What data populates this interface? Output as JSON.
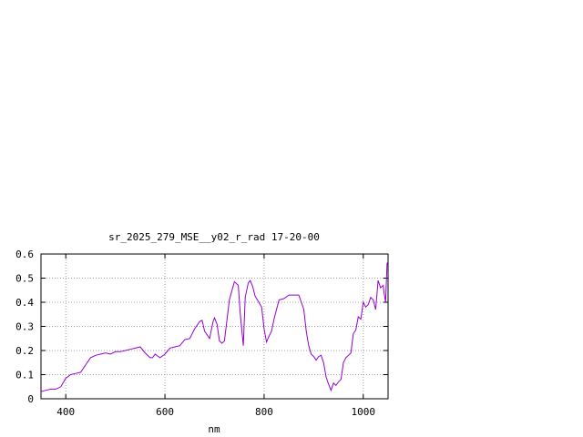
{
  "chart_data": {
    "type": "line",
    "title": "sr_2025_279_MSE__y02_r_rad 17-20-00",
    "xlabel": "nm",
    "ylabel": "",
    "xlim": [
      350,
      1050
    ],
    "ylim": [
      0,
      0.6
    ],
    "grid": true,
    "x_ticks": [
      400,
      600,
      800,
      1000
    ],
    "x_tick_labels": [
      "400",
      "600",
      "800",
      "1000"
    ],
    "y_ticks": [
      0,
      0.1,
      0.2,
      0.3,
      0.4,
      0.5,
      0.6
    ],
    "y_tick_labels": [
      "0",
      "0.1",
      "0.2",
      "0.3",
      "0.4",
      "0.5",
      "0.6"
    ],
    "colors": {
      "series": "#9400d3",
      "grid": "#a0a0a0",
      "axes": "#000000"
    },
    "series": [
      {
        "x": [
          350,
          360,
          370,
          380,
          390,
          400,
          410,
          420,
          430,
          440,
          450,
          460,
          470,
          480,
          490,
          500,
          510,
          520,
          530,
          540,
          550,
          560,
          570,
          575,
          580,
          590,
          600,
          610,
          620,
          630,
          640,
          650,
          660,
          670,
          675,
          680,
          690,
          697,
          700,
          705,
          710,
          715,
          720,
          730,
          740,
          748,
          752,
          758,
          762,
          768,
          772,
          777,
          782,
          788,
          795,
          800,
          805,
          810,
          815,
          820,
          830,
          840,
          850,
          860,
          870,
          875,
          880,
          885,
          890,
          895,
          900,
          905,
          910,
          915,
          920,
          925,
          930,
          935,
          940,
          945,
          950,
          955,
          960,
          965,
          970,
          975,
          980,
          985,
          990,
          995,
          1000,
          1005,
          1010,
          1015,
          1020,
          1025,
          1030,
          1035,
          1040,
          1042,
          1045,
          1048,
          1050
        ],
        "y": [
          0.03,
          0.035,
          0.04,
          0.04,
          0.05,
          0.085,
          0.1,
          0.105,
          0.11,
          0.14,
          0.17,
          0.18,
          0.185,
          0.19,
          0.185,
          0.195,
          0.195,
          0.2,
          0.205,
          0.21,
          0.215,
          0.19,
          0.17,
          0.17,
          0.185,
          0.17,
          0.185,
          0.21,
          0.215,
          0.22,
          0.245,
          0.25,
          0.29,
          0.32,
          0.325,
          0.28,
          0.25,
          0.32,
          0.335,
          0.31,
          0.24,
          0.23,
          0.24,
          0.41,
          0.485,
          0.47,
          0.35,
          0.22,
          0.42,
          0.48,
          0.49,
          0.465,
          0.425,
          0.405,
          0.38,
          0.29,
          0.235,
          0.26,
          0.28,
          0.33,
          0.41,
          0.415,
          0.43,
          0.43,
          0.43,
          0.4,
          0.37,
          0.28,
          0.22,
          0.185,
          0.175,
          0.16,
          0.175,
          0.18,
          0.15,
          0.09,
          0.06,
          0.035,
          0.065,
          0.055,
          0.07,
          0.08,
          0.15,
          0.17,
          0.18,
          0.19,
          0.27,
          0.285,
          0.34,
          0.33,
          0.4,
          0.38,
          0.39,
          0.42,
          0.41,
          0.37,
          0.49,
          0.46,
          0.47,
          0.44,
          0.4,
          0.56,
          0.57
        ]
      }
    ]
  }
}
